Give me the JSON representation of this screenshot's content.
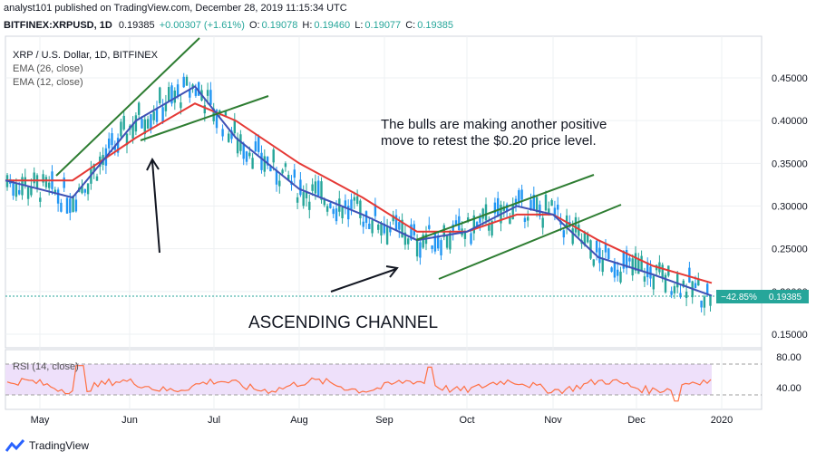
{
  "header": {
    "line1": "analyst101 published on TradingView.com, December 28, 2019 11:15:34 UTC",
    "symbol": "BITFINEX:XRPUSD, 1D",
    "last": "0.19385",
    "change": "+0.00307 (+1.61%)",
    "o_label": "O:",
    "o": "0.19078",
    "h_label": "H:",
    "h": "0.19460",
    "l_label": "L:",
    "l": "0.19077",
    "c_label": "C:",
    "c": "0.19385"
  },
  "legend": {
    "title": "XRP / U.S. Dollar, 1D, BITFINEX",
    "ema26": "EMA (26, close)",
    "ema12": "EMA (12, close)"
  },
  "annotations": {
    "line1": "The bulls are making another positive",
    "line2": "move to retest the $0.20 price level.",
    "channel": "ASCENDING CHANNEL"
  },
  "rsi": {
    "label": "RSI (14, close)",
    "level_hi": "80.00",
    "level_lo": "40.00"
  },
  "price_badge": {
    "pct": "−42.85%",
    "price": "0.19385"
  },
  "footer": {
    "brand": "TradingView"
  },
  "colors": {
    "up": "#2196f3",
    "ema26": "#e53935",
    "ema12": "#3f51b5",
    "channel": "#2e7d32",
    "rsi": "#ff7043",
    "rsi_band": "#e9d5f7",
    "badge": "#26a69a"
  },
  "chart_data": {
    "type": "line",
    "title": "XRP / U.S. Dollar, 1D, BITFINEX",
    "y_ticks": [
      "0.45000",
      "0.40000",
      "0.35000",
      "0.30000",
      "0.25000",
      "0.20000",
      "0.15000"
    ],
    "ylim": [
      0.13,
      0.5
    ],
    "x_ticks": [
      "May",
      "Jun",
      "Jul",
      "Aug",
      "Sep",
      "Oct",
      "Nov",
      "Dec",
      "2020"
    ],
    "series": [
      {
        "name": "EMA (26, close)",
        "x": [
          "Apr 28",
          "May 15",
          "Jun 5",
          "Jun 25",
          "Jul 10",
          "Aug 1",
          "Aug 25",
          "Sep 15",
          "Oct 1",
          "Oct 20",
          "Nov 5",
          "Nov 20",
          "Dec 10",
          "Dec 27"
        ],
        "values": [
          0.33,
          0.33,
          0.38,
          0.42,
          0.4,
          0.35,
          0.31,
          0.27,
          0.27,
          0.29,
          0.29,
          0.26,
          0.23,
          0.21
        ]
      },
      {
        "name": "EMA (12, close)",
        "x": [
          "Apr 28",
          "May 15",
          "Jun 5",
          "Jun 25",
          "Jul 10",
          "Aug 1",
          "Aug 25",
          "Sep 15",
          "Oct 1",
          "Oct 20",
          "Nov 5",
          "Nov 20",
          "Dec 10",
          "Dec 27"
        ],
        "values": [
          0.33,
          0.31,
          0.4,
          0.44,
          0.38,
          0.32,
          0.29,
          0.26,
          0.27,
          0.3,
          0.29,
          0.24,
          0.22,
          0.195
        ]
      }
    ],
    "rsi_levels": [
      80,
      40
    ]
  }
}
